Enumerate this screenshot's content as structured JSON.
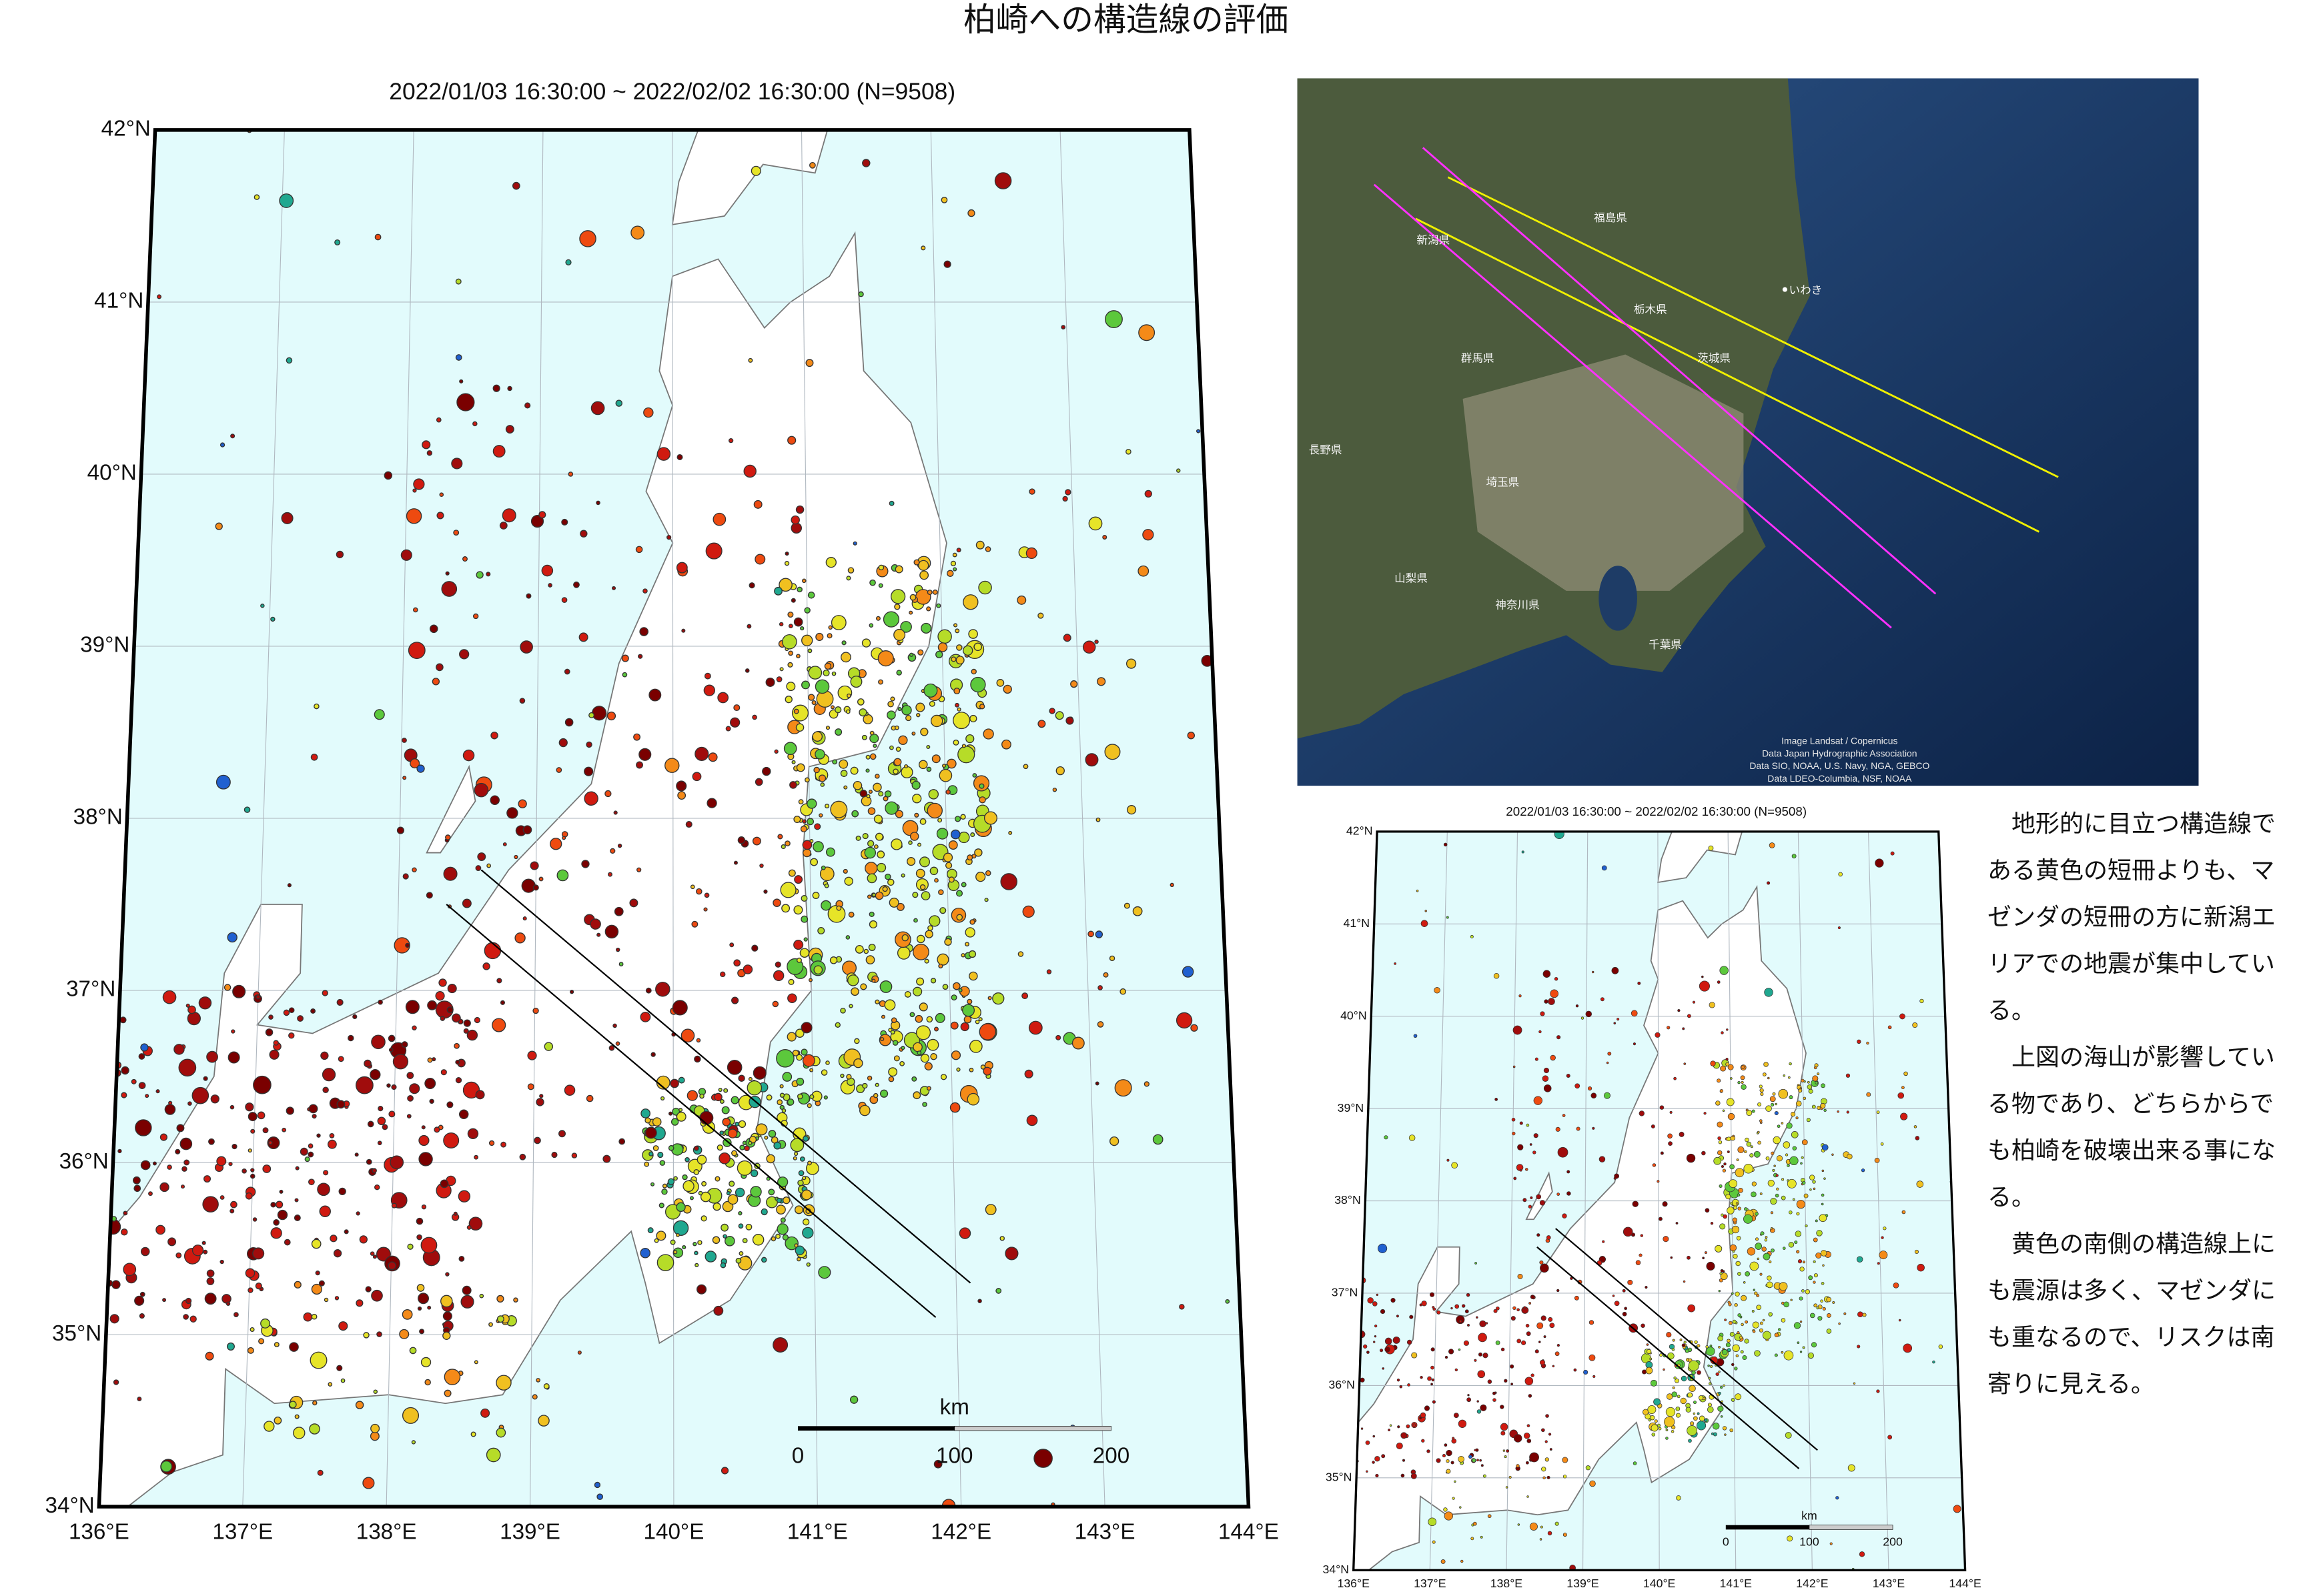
{
  "title": "柏崎への構造線の評価",
  "main_map": {
    "title": "2022/01/03 16:30:00 ~ 2022/02/02 16:30:00 (N=9508)",
    "lat_labels": [
      "42°N",
      "41°N",
      "40°N",
      "39°N",
      "38°N",
      "37°N",
      "36°N",
      "35°N",
      "34°N"
    ],
    "lon_labels": [
      "136°E",
      "137°E",
      "138°E",
      "139°E",
      "140°E",
      "141°E",
      "142°E",
      "143°E",
      "144°E"
    ],
    "scale": {
      "unit": "km",
      "labels": [
        "0",
        "100",
        "200"
      ]
    }
  },
  "satellite": {
    "labels": [
      "福島県",
      "新潟県",
      "栃木県",
      "茨城県",
      "群馬県",
      "長野県",
      "埼玉県",
      "山梨県",
      "神奈川県",
      "千葉県",
      "いわき"
    ],
    "credits": [
      "Image Landsat / Copernicus",
      "Data Japan Hydrographic Association",
      "Data SIO, NOAA, U.S. Navy, NGA, GEBCO",
      "Data LDEO-Columbia, NSF, NOAA"
    ]
  },
  "small_map": {
    "title": "2022/01/03 16:30:00 ~ 2022/02/02 16:30:00 (N=9508)",
    "lat_labels": [
      "42°N",
      "41°N",
      "40°N",
      "39°N",
      "38°N",
      "37°N",
      "36°N",
      "35°N",
      "34°N"
    ],
    "lon_labels": [
      "136°E",
      "137°E",
      "138°E",
      "139°E",
      "140°E",
      "141°E",
      "142°E",
      "143°E",
      "144°E"
    ],
    "scale": {
      "unit": "km",
      "labels": [
        "0",
        "100",
        "200"
      ]
    }
  },
  "notes": [
    "地形的に目立つ構造線である黄色の短冊よりも、マゼンダの短冊の方に新潟エリアでの地震が集中している。",
    "上図の海山が影響している物であり、どちらからでも柏崎を破壊出来る事になる。",
    "黄色の南側の構造線上にも震源は多く、マゼンダにも重なるので、リスクは南寄りに見える。"
  ]
}
